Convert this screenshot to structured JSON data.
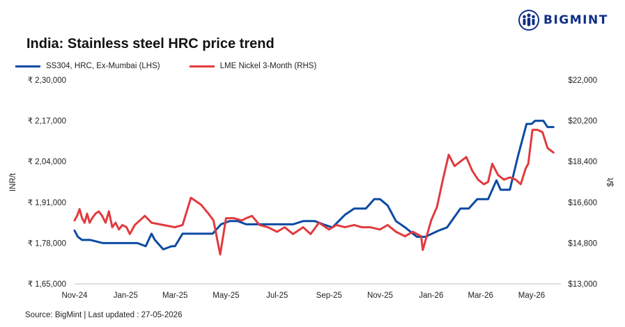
{
  "brand": {
    "name": "BIGMINT",
    "color": "#0f2f86",
    "icon": "people-logo-icon"
  },
  "title": "India: Stainless steel HRC price trend",
  "source": "Source: BigMint | Last updated : 27-05-2026",
  "chart_data": {
    "type": "line",
    "title": "India: Stainless steel HRC price trend",
    "ylabel": "INR/t",
    "y2label": "$/t",
    "ylim": [
      165000,
      230000
    ],
    "y2lim": [
      13000,
      22000
    ],
    "yticks": [
      "₹ 2,30,000",
      "₹ 2,17,000",
      "₹ 2,04,000",
      "₹ 1,91,000",
      "₹ 1,78,000",
      "₹ 1,65,000"
    ],
    "y2ticks": [
      "$22,000",
      "$20,200",
      "$18,400",
      "$16,600",
      "$14,800",
      "$13,000"
    ],
    "xticks": [
      "Nov-24",
      "Jan-25",
      "Mar-25",
      "May-25",
      "Jul-25",
      "Sep-25",
      "Nov-25",
      "Jan-26",
      "Mar-26",
      "May-26"
    ],
    "grid": false,
    "legend_position": "top-left",
    "series": [
      {
        "name": "SS304, HRC, Ex-Mumbai (LHS)",
        "axis": "left",
        "color": "#0b4aa2",
        "x": [
          "2024-11-01",
          "2024-11-05",
          "2024-11-10",
          "2024-11-20",
          "2024-12-05",
          "2024-12-20",
          "2025-01-05",
          "2025-01-15",
          "2025-01-25",
          "2025-02-01",
          "2025-02-05",
          "2025-02-15",
          "2025-02-25",
          "2025-03-01",
          "2025-03-10",
          "2025-03-25",
          "2025-04-15",
          "2025-04-25",
          "2025-05-05",
          "2025-05-15",
          "2025-05-25",
          "2025-06-01",
          "2025-06-15",
          "2025-07-01",
          "2025-07-10",
          "2025-07-20",
          "2025-08-01",
          "2025-08-15",
          "2025-08-25",
          "2025-09-05",
          "2025-09-20",
          "2025-10-01",
          "2025-10-15",
          "2025-10-25",
          "2025-11-01",
          "2025-11-10",
          "2025-11-20",
          "2025-12-01",
          "2025-12-15",
          "2025-12-25",
          "2026-01-10",
          "2026-01-20",
          "2026-02-05",
          "2026-02-15",
          "2026-02-25",
          "2026-03-01",
          "2026-03-10",
          "2026-03-20",
          "2026-03-25",
          "2026-04-05",
          "2026-04-15",
          "2026-04-25",
          "2026-05-01",
          "2026-05-05",
          "2026-05-10",
          "2026-05-15",
          "2026-05-20",
          "2026-05-27"
        ],
        "values": [
          182000,
          180000,
          179000,
          179000,
          178000,
          178000,
          178000,
          178000,
          177000,
          181000,
          179000,
          176000,
          177000,
          177000,
          181000,
          181000,
          181000,
          184000,
          185000,
          185000,
          184000,
          184000,
          184000,
          184000,
          184000,
          184000,
          185000,
          185000,
          184000,
          183000,
          187000,
          189000,
          189000,
          192000,
          192000,
          190000,
          185000,
          183000,
          180000,
          180000,
          182000,
          183000,
          189000,
          189000,
          192000,
          192000,
          192000,
          198000,
          195000,
          195000,
          206000,
          216000,
          216000,
          217000,
          217000,
          217000,
          215000,
          215000
        ]
      },
      {
        "name": "LME Nickel 3-Month (RHS)",
        "axis": "right",
        "color": "#e13a3e",
        "x": [
          "2024-11-01",
          "2024-11-04",
          "2024-11-07",
          "2024-11-10",
          "2024-11-13",
          "2024-11-16",
          "2024-11-19",
          "2024-11-22",
          "2024-11-26",
          "2024-11-30",
          "2024-12-04",
          "2024-12-08",
          "2024-12-12",
          "2024-12-16",
          "2024-12-20",
          "2024-12-24",
          "2024-12-28",
          "2025-01-02",
          "2025-01-06",
          "2025-01-12",
          "2025-01-18",
          "2025-01-24",
          "2025-02-01",
          "2025-02-15",
          "2025-03-01",
          "2025-03-10",
          "2025-03-20",
          "2025-04-01",
          "2025-04-10",
          "2025-04-16",
          "2025-04-24",
          "2025-05-01",
          "2025-05-10",
          "2025-05-20",
          "2025-05-25",
          "2025-06-01",
          "2025-06-10",
          "2025-06-20",
          "2025-07-01",
          "2025-07-10",
          "2025-07-20",
          "2025-08-01",
          "2025-08-10",
          "2025-08-20",
          "2025-09-01",
          "2025-09-10",
          "2025-09-20",
          "2025-10-01",
          "2025-10-10",
          "2025-10-20",
          "2025-11-01",
          "2025-11-10",
          "2025-11-20",
          "2025-12-01",
          "2025-12-10",
          "2025-12-20",
          "2025-12-22",
          "2026-01-01",
          "2026-01-08",
          "2026-01-15",
          "2026-01-22",
          "2026-01-29",
          "2026-02-05",
          "2026-02-12",
          "2026-02-19",
          "2026-02-26",
          "2026-03-05",
          "2026-03-10",
          "2026-03-15",
          "2026-03-22",
          "2026-03-29",
          "2026-04-05",
          "2026-04-12",
          "2026-04-18",
          "2026-04-24",
          "2026-04-27",
          "2026-05-02",
          "2026-05-08",
          "2026-05-14",
          "2026-05-20",
          "2026-05-27"
        ],
        "values": [
          15800,
          16000,
          16300,
          15900,
          15700,
          16100,
          15700,
          15900,
          16100,
          16200,
          16000,
          15700,
          16200,
          15500,
          15700,
          15400,
          15600,
          15500,
          15200,
          15600,
          15800,
          16000,
          15700,
          15600,
          15500,
          15600,
          16800,
          16500,
          16100,
          15800,
          14300,
          15900,
          15900,
          15800,
          15900,
          16000,
          15600,
          15500,
          15300,
          15500,
          15200,
          15500,
          15200,
          15700,
          15400,
          15600,
          15500,
          15600,
          15500,
          15500,
          15400,
          15600,
          15300,
          15100,
          15300,
          15100,
          14500,
          15800,
          16400,
          17600,
          18700,
          18200,
          18400,
          18600,
          18000,
          17600,
          17400,
          17500,
          18300,
          17800,
          17600,
          17700,
          17600,
          17400,
          18100,
          18300,
          19800,
          19800,
          19700,
          19000,
          18800
        ]
      }
    ]
  }
}
